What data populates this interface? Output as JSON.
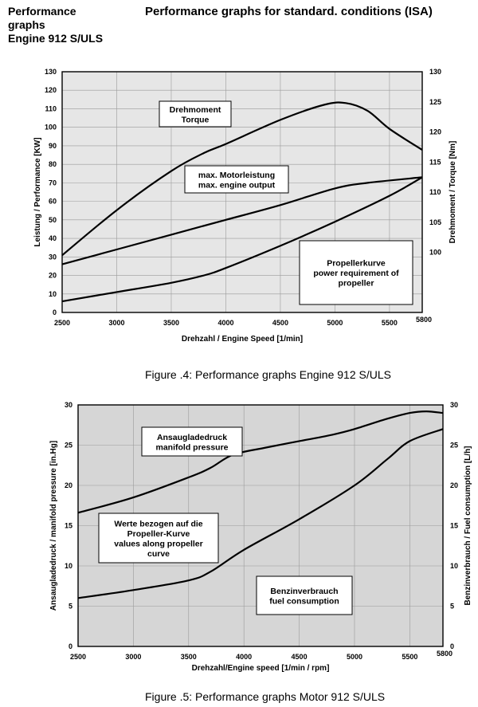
{
  "header": {
    "left_lines": [
      "Performance",
      "graphs",
      "Engine 912 S/ULS"
    ],
    "title": "Performance graphs for standard. conditions (ISA)"
  },
  "captions": {
    "fig4": "Figure .4: Performance graphs Engine 912 S/ULS",
    "fig5": "Figure .5: Performance graphs Motor 912 S/ULS"
  },
  "chart_data": [
    {
      "type": "line",
      "xlabel": "Drehzahl / Engine Speed [1/min]",
      "ylabel_left": "Leistung / Performance [KW]",
      "ylabel_right": "Drehmoment / Torque [Nm]",
      "xlim": [
        2500,
        5800
      ],
      "ylim_left": [
        0,
        130
      ],
      "ylim_right": [
        90,
        130
      ],
      "x_ticks": [
        2500,
        3000,
        3500,
        4000,
        4500,
        5000,
        5500,
        5800
      ],
      "y_ticks_left": [
        0,
        10,
        20,
        30,
        40,
        50,
        60,
        70,
        80,
        90,
        100,
        110,
        120,
        130
      ],
      "y_ticks_right": [
        100,
        105,
        110,
        115,
        120,
        125,
        130
      ],
      "background": "#e6e6e6",
      "grid": true,
      "series": [
        {
          "axis": "right",
          "points": [
            [
              2500,
              99.5
            ],
            [
              3000,
              107
            ],
            [
              3500,
              113.5
            ],
            [
              3800,
              116.5
            ],
            [
              4000,
              118
            ],
            [
              4500,
              122
            ],
            [
              4900,
              124.5
            ],
            [
              5100,
              124.8
            ],
            [
              5300,
              123.5
            ],
            [
              5500,
              120.5
            ],
            [
              5800,
              117
            ]
          ]
        },
        {
          "axis": "left",
          "points": [
            [
              2500,
              26
            ],
            [
              3000,
              34
            ],
            [
              3500,
              42
            ],
            [
              4000,
              50
            ],
            [
              4500,
              58
            ],
            [
              5000,
              67
            ],
            [
              5300,
              70
            ],
            [
              5800,
              73
            ]
          ]
        },
        {
          "axis": "left",
          "points": [
            [
              2500,
              6
            ],
            [
              3000,
              11
            ],
            [
              3500,
              16
            ],
            [
              3800,
              20
            ],
            [
              4000,
              24
            ],
            [
              4500,
              36
            ],
            [
              5000,
              49
            ],
            [
              5500,
              63
            ],
            [
              5800,
              73
            ]
          ]
        }
      ],
      "annotations": [
        {
          "lines": [
            "Drehmoment",
            "Torque"
          ]
        },
        {
          "lines": [
            "max. Motorleistung",
            "max. engine output"
          ]
        },
        {
          "lines": [
            "Propellerkurve",
            "power requirement of",
            "propeller"
          ]
        }
      ]
    },
    {
      "type": "line",
      "xlabel": "Drehzahl/Engine speed [1/min / rpm]",
      "ylabel_left": "Ansaugladedruck / manifold pressure [in.Hg]",
      "ylabel_right": "Benzinverbrauch / Fuel consumption [L/h]",
      "xlim": [
        2500,
        5800
      ],
      "ylim_left": [
        0,
        30
      ],
      "ylim_right": [
        0,
        30
      ],
      "x_ticks": [
        2500,
        3000,
        3500,
        4000,
        4500,
        5000,
        5500,
        5800
      ],
      "y_ticks_left": [
        0,
        5,
        10,
        15,
        20,
        25,
        30
      ],
      "y_ticks_right": [
        0,
        5,
        10,
        15,
        20,
        25,
        30
      ],
      "background": "#d6d6d6",
      "grid": true,
      "series": [
        {
          "axis": "left",
          "points": [
            [
              2500,
              16.6
            ],
            [
              3000,
              18.5
            ],
            [
              3500,
              21
            ],
            [
              3700,
              22.2
            ],
            [
              3900,
              23.8
            ],
            [
              4200,
              24.7
            ],
            [
              4500,
              25.5
            ],
            [
              4800,
              26.3
            ],
            [
              5000,
              27
            ],
            [
              5300,
              28.3
            ],
            [
              5500,
              29
            ],
            [
              5650,
              29.2
            ],
            [
              5800,
              29
            ]
          ]
        },
        {
          "axis": "right",
          "points": [
            [
              2500,
              6
            ],
            [
              3000,
              7
            ],
            [
              3500,
              8.2
            ],
            [
              3700,
              9.3
            ],
            [
              4000,
              12
            ],
            [
              4500,
              15.8
            ],
            [
              5000,
              20
            ],
            [
              5300,
              23.3
            ],
            [
              5500,
              25.5
            ],
            [
              5800,
              27
            ]
          ]
        }
      ],
      "annotations": [
        {
          "lines": [
            "Ansaugladedruck",
            "manifold pressure"
          ]
        },
        {
          "lines": [
            "Werte bezogen auf die",
            "Propeller-Kurve",
            "values along propeller",
            "curve"
          ]
        },
        {
          "lines": [
            "Benzinverbrauch",
            "fuel consumption"
          ]
        }
      ]
    }
  ]
}
